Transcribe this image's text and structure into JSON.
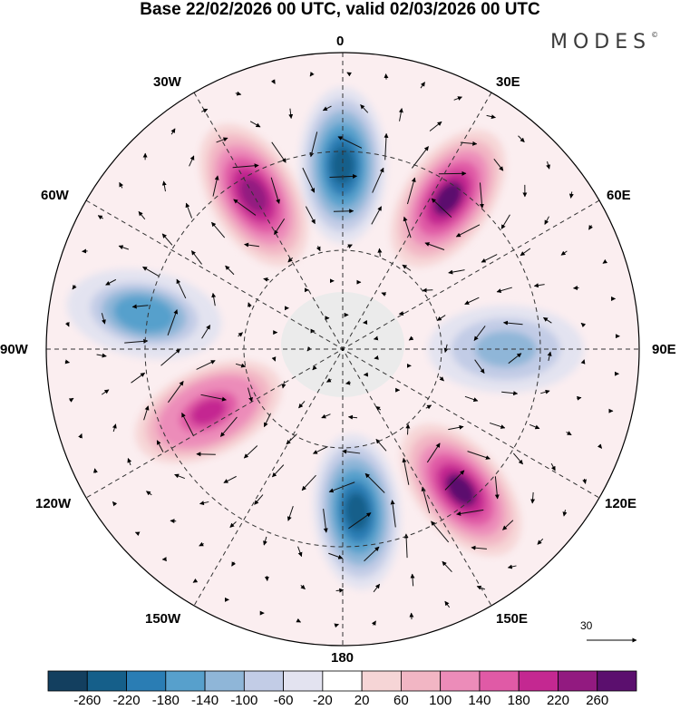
{
  "title": "Base 22/02/2026 00 UTC, valid 02/03/2026 00 UTC",
  "brand": "MODES",
  "brand_mark": "©",
  "projection": "south-polar-stereographic",
  "longitude_labels": {
    "lon_0": "0",
    "lon_30e": "30E",
    "lon_60e": "60E",
    "lon_90e": "90E",
    "lon_120e": "120E",
    "lon_150e": "150E",
    "lon_180": "180",
    "lon_150w": "150W",
    "lon_120w": "120W",
    "lon_90w": "90W",
    "lon_60w": "60W",
    "lon_30w": "30W"
  },
  "reference_vector": {
    "value": "30"
  },
  "colorbar": {
    "labels": [
      "-260",
      "-220",
      "-180",
      "-140",
      "-100",
      "-60",
      "-20",
      "20",
      "60",
      "100",
      "140",
      "180",
      "220",
      "260"
    ],
    "colors": [
      "#133f5f",
      "#155f8a",
      "#2a7db4",
      "#57a0cc",
      "#8fb6d8",
      "#c2cce6",
      "#e3e3f0",
      "#ffffff",
      "#f6d5d6",
      "#f2b6c4",
      "#ec8cb9",
      "#e05aa6",
      "#c42891",
      "#921a80",
      "#5b0f6e"
    ]
  },
  "anomaly_centers": [
    {
      "lon": 0,
      "lat_norm": 0.62,
      "value": -260
    },
    {
      "lon": 35,
      "lat_norm": 0.62,
      "value": 260
    },
    {
      "lon": -30,
      "lat_norm": 0.6,
      "value": 230
    },
    {
      "lon": -80,
      "lat_norm": 0.68,
      "value": -180
    },
    {
      "lon": 90,
      "lat_norm": 0.55,
      "value": -140
    },
    {
      "lon": 140,
      "lat_norm": 0.62,
      "value": 260
    },
    {
      "lon": 175,
      "lat_norm": 0.55,
      "value": -260
    },
    {
      "lon": -115,
      "lat_norm": 0.5,
      "value": 200
    }
  ]
}
